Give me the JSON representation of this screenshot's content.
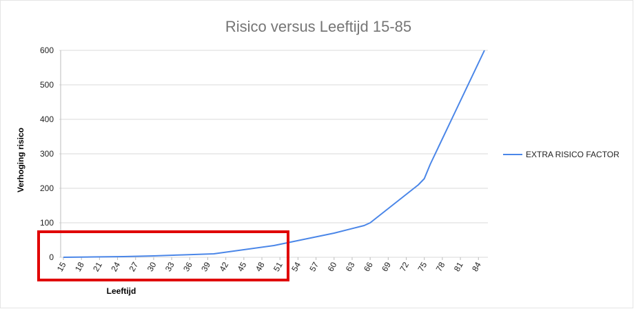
{
  "chart_data": {
    "type": "line",
    "title": "Risico versus Leeftijd 15-85",
    "x_label": "Leeftijd",
    "y_label": "Verhoging risico",
    "x": [
      15,
      20,
      25,
      30,
      35,
      40,
      45,
      50,
      55,
      60,
      65,
      66,
      70,
      74,
      75,
      76,
      80,
      85
    ],
    "series": [
      {
        "name": "EXTRA RISICO FACTOR",
        "color": "#4a86e8",
        "values": [
          0,
          1,
          2,
          4,
          7,
          10,
          22,
          34,
          52,
          70,
          92,
          100,
          155,
          210,
          228,
          270,
          417,
          600
        ]
      }
    ],
    "xlim": [
      15,
      85
    ],
    "xticks": [
      15,
      18,
      21,
      24,
      27,
      30,
      33,
      36,
      39,
      42,
      45,
      48,
      51,
      54,
      57,
      60,
      63,
      66,
      69,
      72,
      75,
      78,
      81,
      84
    ],
    "ylim": [
      0,
      600
    ],
    "yticks": [
      0,
      100,
      200,
      300,
      400,
      500,
      600
    ],
    "grid": true,
    "legend": "right"
  }
}
